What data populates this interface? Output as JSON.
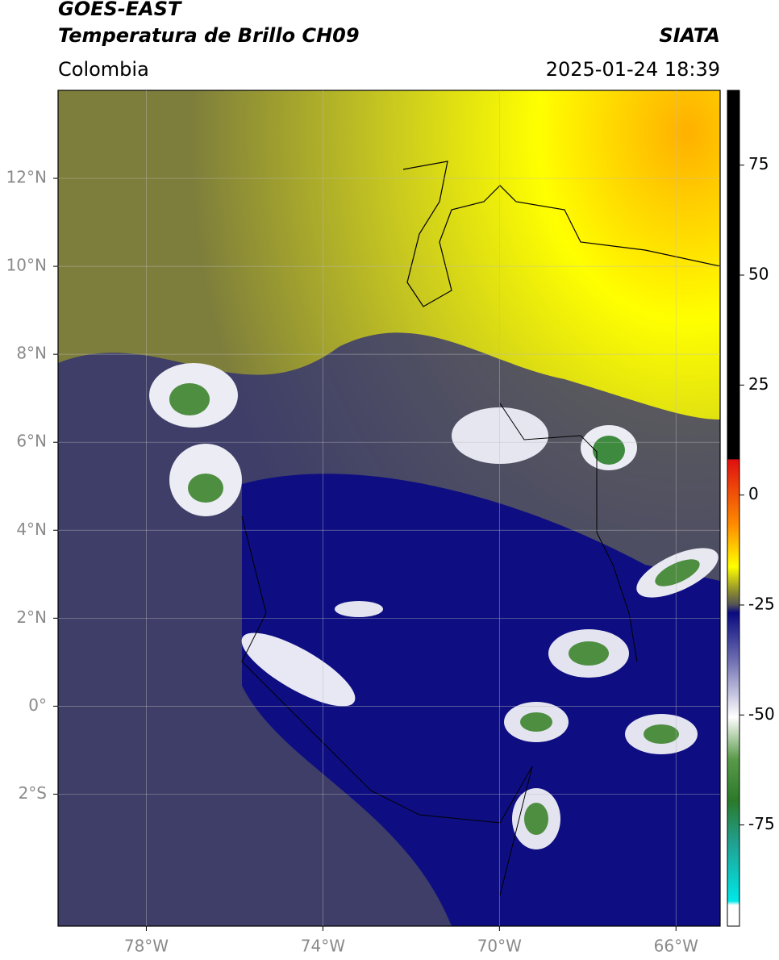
{
  "header": {
    "title": [
      "GOES-EAST",
      "Temperatura de Brillo CH09"
    ],
    "region": "Colombia",
    "source": "SIATA",
    "timestamp": "2025-01-24 18:39"
  },
  "map": {
    "xlim": [
      -80,
      -65
    ],
    "ylim": [
      -5,
      14
    ],
    "xticks": [
      {
        "value": -78,
        "label": "78°W"
      },
      {
        "value": -74,
        "label": "74°W"
      },
      {
        "value": -70,
        "label": "70°W"
      },
      {
        "value": -66,
        "label": "66°W"
      }
    ],
    "yticks": [
      {
        "value": 12,
        "label": "12°N"
      },
      {
        "value": 10,
        "label": "10°N"
      },
      {
        "value": 8,
        "label": "8°N"
      },
      {
        "value": 6,
        "label": "6°N"
      },
      {
        "value": 4,
        "label": "4°N"
      },
      {
        "value": 2,
        "label": "2°N"
      },
      {
        "value": 0,
        "label": "0°"
      },
      {
        "value": -2,
        "label": "2°S"
      }
    ],
    "grid": true
  },
  "colorbar": {
    "lim": [
      -98,
      92
    ],
    "ticks": [
      75,
      50,
      25,
      0,
      -25,
      -50,
      -75
    ]
  }
}
